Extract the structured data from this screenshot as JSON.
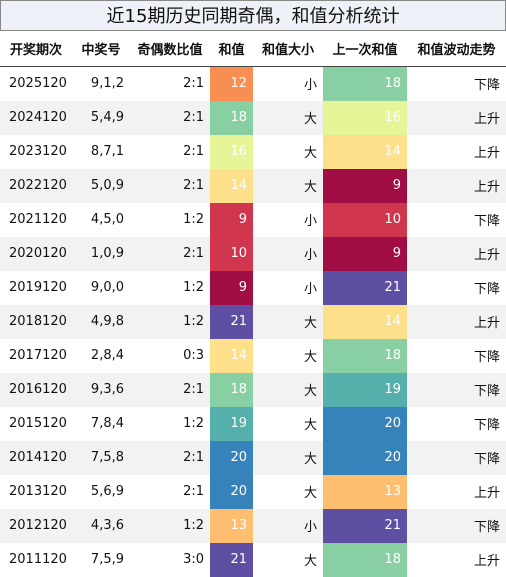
{
  "title": "近15期历史同期奇偶，和值分析统计",
  "table": {
    "header": [
      "开奖期次",
      "中奖号",
      "奇偶数比值",
      "和值",
      "和值大小",
      "上一次和值",
      "和值波动走势"
    ],
    "rows": [
      [
        "2025120",
        "9,1,2",
        "2:1",
        12,
        "小",
        18,
        "下降"
      ],
      [
        "2024120",
        "5,4,9",
        "2:1",
        18,
        "大",
        16,
        "上升"
      ],
      [
        "2023120",
        "8,7,1",
        "2:1",
        16,
        "大",
        14,
        "上升"
      ],
      [
        "2022120",
        "5,0,9",
        "2:1",
        14,
        "大",
        9,
        "上升"
      ],
      [
        "2021120",
        "4,5,0",
        "1:2",
        9,
        "小",
        10,
        "下降"
      ],
      [
        "2020120",
        "1,0,9",
        "2:1",
        10,
        "小",
        9,
        "上升"
      ],
      [
        "2019120",
        "9,0,0",
        "1:2",
        9,
        "小",
        21,
        "下降"
      ],
      [
        "2018120",
        "4,9,8",
        "1:2",
        21,
        "大",
        14,
        "上升"
      ],
      [
        "2017120",
        "2,8,4",
        "0:3",
        14,
        "大",
        18,
        "下降"
      ],
      [
        "2016120",
        "9,3,6",
        "2:1",
        18,
        "大",
        19,
        "下降"
      ],
      [
        "2015120",
        "7,8,4",
        "1:2",
        19,
        "大",
        20,
        "下降"
      ],
      [
        "2014120",
        "7,5,8",
        "2:1",
        20,
        "大",
        20,
        "下降"
      ],
      [
        "2013120",
        "5,6,9",
        "2:1",
        20,
        "大",
        13,
        "上升"
      ],
      [
        "2012120",
        "4,3,6",
        "1:2",
        13,
        "小",
        21,
        "下降"
      ],
      [
        "2011120",
        "7,5,9",
        "3:0",
        21,
        "大",
        18,
        "上升"
      ]
    ],
    "sum_colors": [
      "#f98e52",
      "#88d0a4",
      "#e6f598",
      "#fee08b",
      "#d0374f",
      "#d0374f",
      "#a10d45",
      "#5e4fa2",
      "#fee08b",
      "#88d0a4",
      "#55b0ab",
      "#3683bb",
      "#3683bb",
      "#fdbe6f",
      "#5e4fa2"
    ],
    "prev_colors": [
      "#88d0a4",
      "#e6f598",
      "#fee08b",
      "#a10d45",
      "#d0374f",
      "#a10d45",
      "#5e4fa2",
      "#fee08b",
      "#88d0a4",
      "#55b0ab",
      "#3683bb",
      "#3683bb",
      "#fdbe6f",
      "#5e4fa2",
      "#88d0a4"
    ]
  }
}
